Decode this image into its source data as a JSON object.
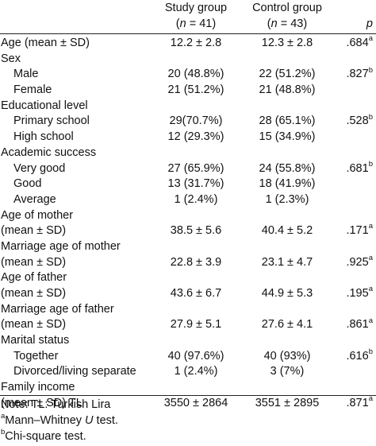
{
  "header": {
    "study_title": "Study group",
    "study_n_open": "(",
    "study_n_var": "n",
    "study_n_close": " = 41)",
    "control_title": "Control group",
    "control_n_open": "(",
    "control_n_var": "n",
    "control_n_close": " = 43)",
    "p": "p"
  },
  "rows": [
    {
      "label": "Age (mean ± SD)",
      "study": "12.2 ± 2.8",
      "control": "12.3 ± 2.8",
      "p": ".684",
      "sup": "a"
    },
    {
      "label": "Sex",
      "study": "",
      "control": "",
      "p": "",
      "sup": ""
    },
    {
      "label": "Male",
      "study": "20 (48.8%)",
      "control": "22 (51.2%)",
      "p": ".827",
      "sup": "b"
    },
    {
      "label": "Female",
      "study": "21 (51.2%)",
      "control": "21 (48.8%)",
      "p": "",
      "sup": ""
    },
    {
      "label": "Educational level",
      "study": "",
      "control": "",
      "p": "",
      "sup": ""
    },
    {
      "label": "Primary school",
      "study": "29(70.7%)",
      "control": "28 (65.1%)",
      "p": ".528",
      "sup": "b"
    },
    {
      "label": "High school",
      "study": "12 (29.3%)",
      "control": "15 (34.9%)",
      "p": "",
      "sup": ""
    },
    {
      "label": "Academic success",
      "study": "",
      "control": "",
      "p": "",
      "sup": ""
    },
    {
      "label": "Very good",
      "study": "27 (65.9%)",
      "control": "24 (55.8%)",
      "p": ".681",
      "sup": "b"
    },
    {
      "label": "Good",
      "study": "13 (31.7%)",
      "control": "18 (41.9%)",
      "p": "",
      "sup": ""
    },
    {
      "label": "Average",
      "study": "1 (2.4%)",
      "control": "1 (2.3%)",
      "p": "",
      "sup": ""
    },
    {
      "label": "Age of mother",
      "study": "",
      "control": "",
      "p": "",
      "sup": ""
    },
    {
      "label": "(mean ± SD)",
      "study": "38.5 ± 5.6",
      "control": "40.4 ± 5.2",
      "p": ".171",
      "sup": "a"
    },
    {
      "label": "Marriage age of mother",
      "study": "",
      "control": "",
      "p": "",
      "sup": ""
    },
    {
      "label": "(mean ± SD)",
      "study": "22.8 ± 3.9",
      "control": "23.1 ± 4.7",
      "p": ".925",
      "sup": "a"
    },
    {
      "label": "Age of father",
      "study": "",
      "control": "",
      "p": "",
      "sup": ""
    },
    {
      "label": "(mean ± SD)",
      "study": "43.6 ± 6.7",
      "control": "44.9 ± 5.3",
      "p": ".195",
      "sup": "a"
    },
    {
      "label": "Marriage age of father",
      "study": "",
      "control": "",
      "p": "",
      "sup": ""
    },
    {
      "label": "(mean ± SD)",
      "study": "27.9 ± 5.1",
      "control": "27.6 ± 4.1",
      "p": ".861",
      "sup": "a"
    },
    {
      "label": "Marital status",
      "study": "",
      "control": "",
      "p": "",
      "sup": ""
    },
    {
      "label": "Together",
      "study": "40 (97.6%)",
      "control": "40 (93%)",
      "p": ".616",
      "sup": "b"
    },
    {
      "label": "Divorced/living separate",
      "study": "1 (2.4%)",
      "control": "3 (7%)",
      "p": "",
      "sup": ""
    },
    {
      "label": "Family income",
      "study": "",
      "control": "",
      "p": "",
      "sup": ""
    },
    {
      "label": "(mean ± SD) TL",
      "study": "3550 ± 2864",
      "control": "3551 ± 2895",
      "p": ".871",
      "sup": "a"
    }
  ],
  "notes": {
    "line1": "Note: TL: Turkish Lira",
    "line2_sup": "a",
    "line2_text": "Mann–Whitney ",
    "line2_var": "U",
    "line2_end": " test.",
    "line3_sup": "b",
    "line3_text": "Chi-square test."
  }
}
